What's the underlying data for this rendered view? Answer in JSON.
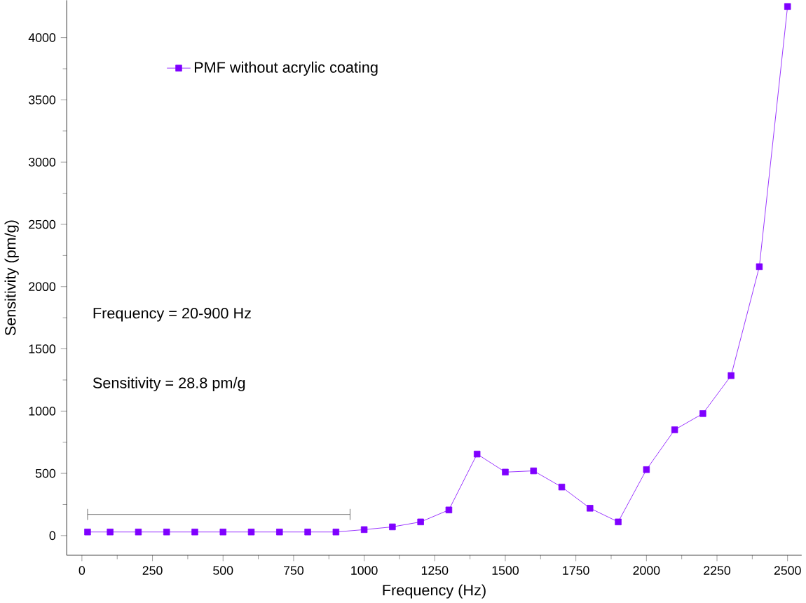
{
  "chart_data": {
    "type": "line",
    "xlabel": "Frequency (Hz)",
    "ylabel": "Sensitivity (pm/g)",
    "x": [
      20,
      100,
      200,
      300,
      400,
      500,
      600,
      700,
      800,
      900,
      1000,
      1100,
      1200,
      1300,
      1400,
      1500,
      1600,
      1700,
      1800,
      1900,
      2000,
      2100,
      2200,
      2300,
      2400,
      2500
    ],
    "series": [
      {
        "name": "PMF without acrylic coating",
        "color": "#7f00ff",
        "values": [
          29,
          29,
          29,
          29,
          29,
          29,
          29,
          29,
          29,
          29,
          48,
          70,
          110,
          206,
          655,
          510,
          520,
          390,
          220,
          110,
          530,
          850,
          980,
          1285,
          2160,
          4250
        ]
      }
    ],
    "xlim": [
      -54,
      2550
    ],
    "ylim": [
      -158,
      4300
    ],
    "xticks": [
      0,
      250,
      500,
      750,
      1000,
      1250,
      1500,
      1750,
      2000,
      2250,
      2500
    ],
    "yticks": [
      0,
      500,
      1000,
      1500,
      2000,
      2500,
      3000,
      3500,
      4000
    ],
    "annotations": [
      "Frequency = 20-900 Hz",
      "Sensitivity = 28.8 pm/g"
    ],
    "legend": "top left",
    "marker": "square",
    "line_style": "solid",
    "grid": false
  }
}
